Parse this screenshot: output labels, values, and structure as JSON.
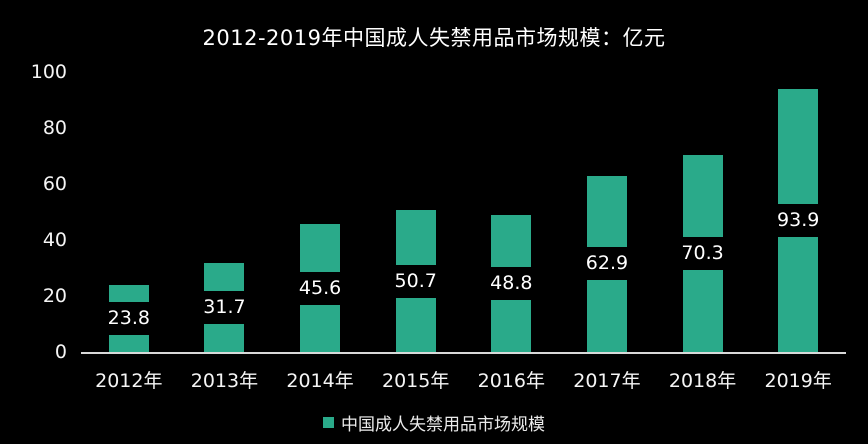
{
  "chart_data": {
    "type": "bar",
    "title": "2012-2019年中国成人失禁用品市场规模：亿元",
    "categories": [
      "2012年",
      "2013年",
      "2014年",
      "2015年",
      "2016年",
      "2017年",
      "2018年",
      "2019年"
    ],
    "values": [
      23.8,
      31.7,
      45.6,
      50.7,
      48.8,
      62.9,
      70.3,
      93.9
    ],
    "series_name": "中国成人失禁用品市场规模",
    "xlabel": "",
    "ylabel": "",
    "ylim": [
      0,
      100
    ],
    "yticks": [
      0,
      20,
      40,
      60,
      80,
      100
    ],
    "grid": false,
    "legend": [
      "中国成人失禁用品市场规模"
    ],
    "legend_position": "bottom",
    "colors": {
      "bar": "#2aaa8a",
      "background": "#000000",
      "text": "#ffffff",
      "axis_line": "#d9d9d9"
    }
  }
}
